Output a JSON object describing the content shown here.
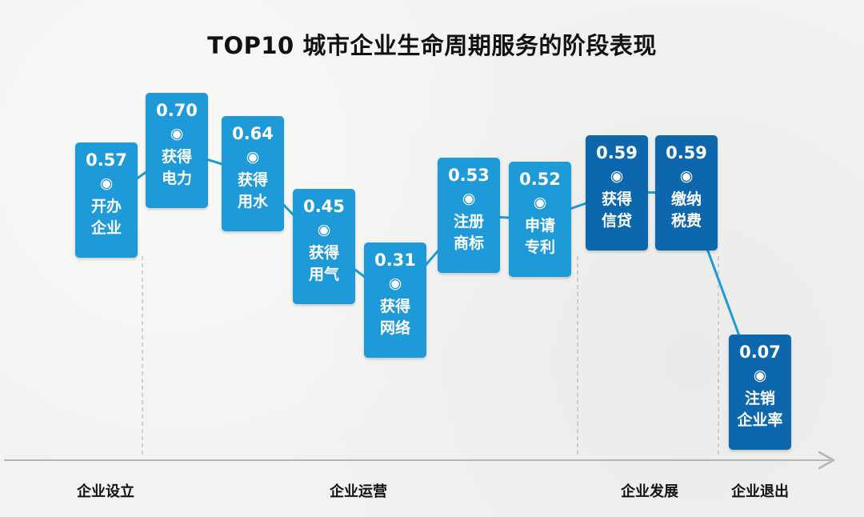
{
  "chart_data": {
    "type": "line",
    "title": "TOP10 城市企业生命周期服务的阶段表现",
    "phases": [
      "企业设立",
      "企业运营",
      "企业发展",
      "企业退出"
    ],
    "categories": [
      {
        "phase": "企业设立",
        "line1": "开办",
        "line2": "企业"
      },
      {
        "phase": "企业运营",
        "line1": "获得",
        "line2": "电力"
      },
      {
        "phase": "企业运营",
        "line1": "获得",
        "line2": "用水"
      },
      {
        "phase": "企业运营",
        "line1": "获得",
        "line2": "用气"
      },
      {
        "phase": "企业运营",
        "line1": "获得",
        "line2": "网络"
      },
      {
        "phase": "企业运营",
        "line1": "注册",
        "line2": "商标"
      },
      {
        "phase": "企业运营",
        "line1": "申请",
        "line2": "专利"
      },
      {
        "phase": "企业发展",
        "line1": "获得",
        "line2": "信贷"
      },
      {
        "phase": "企业发展",
        "line1": "缴纳",
        "line2": "税费"
      },
      {
        "phase": "企业退出",
        "line1": "注销",
        "line2": "企业率"
      }
    ],
    "values": [
      0.57,
      0.7,
      0.64,
      0.45,
      0.31,
      0.53,
      0.52,
      0.59,
      0.59,
      0.07
    ],
    "value_labels": [
      "0.57",
      "0.70",
      "0.64",
      "0.45",
      "0.31",
      "0.53",
      "0.52",
      "0.59",
      "0.59",
      "0.07"
    ],
    "marker_glyph": "◉",
    "grid": false,
    "colors": {
      "light_card": "#1e9ad8",
      "mid_card": "#1580c4",
      "dark_card": "#0d67ad",
      "line": "#1e9ad8",
      "axis": "#b5b5b5",
      "divider": "#b8b8b8"
    }
  }
}
